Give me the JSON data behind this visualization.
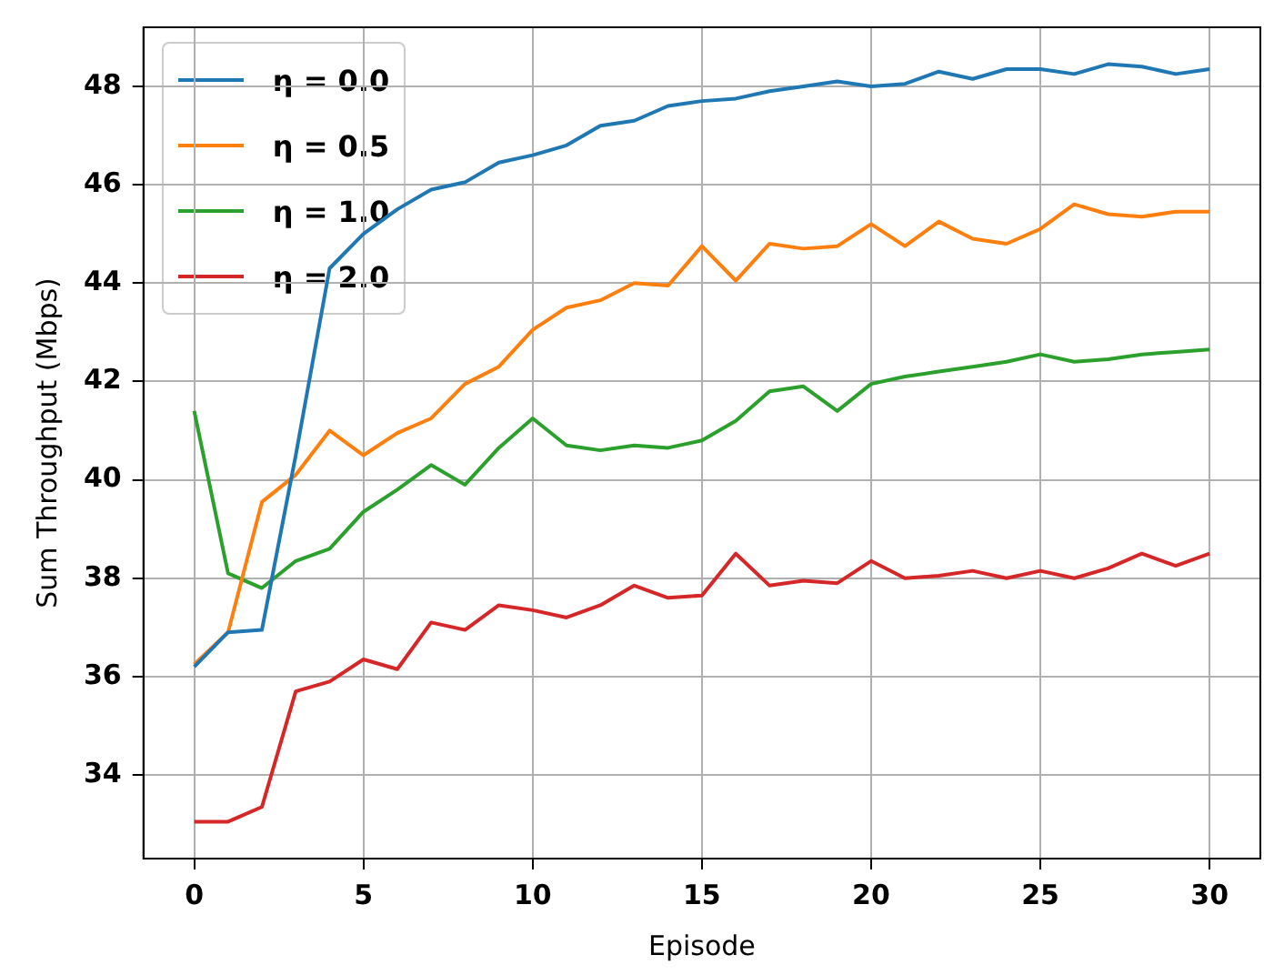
{
  "chart_data": {
    "type": "line",
    "xlabel": "Episode",
    "ylabel": "Sum Throughput (Mbps)",
    "x": [
      0,
      1,
      2,
      3,
      4,
      5,
      6,
      7,
      8,
      9,
      10,
      11,
      12,
      13,
      14,
      15,
      16,
      17,
      18,
      19,
      20,
      21,
      22,
      23,
      24,
      25,
      26,
      27,
      28,
      29,
      30
    ],
    "series": [
      {
        "name": "η = 0.0",
        "color": "#1f77b4",
        "values": [
          36.2,
          36.9,
          36.95,
          40.5,
          44.3,
          45.0,
          45.5,
          45.9,
          46.05,
          46.45,
          46.6,
          46.8,
          47.2,
          47.3,
          47.6,
          47.7,
          47.75,
          47.9,
          48.0,
          48.1,
          48.0,
          48.05,
          48.3,
          48.15,
          48.35,
          48.35,
          48.25,
          48.45,
          48.4,
          48.25,
          48.35
        ]
      },
      {
        "name": "η = 0.5",
        "color": "#ff7f0e",
        "values": [
          36.25,
          36.9,
          39.55,
          40.1,
          41.0,
          40.5,
          40.95,
          41.25,
          41.95,
          42.3,
          43.05,
          43.5,
          43.65,
          44.0,
          43.95,
          44.75,
          44.05,
          44.8,
          44.7,
          44.75,
          45.2,
          44.75,
          45.25,
          44.9,
          44.8,
          45.1,
          45.6,
          45.4,
          45.35,
          45.45,
          45.45
        ]
      },
      {
        "name": "η = 1.0",
        "color": "#2ca02c",
        "values": [
          41.4,
          38.1,
          37.8,
          38.35,
          38.6,
          39.35,
          39.8,
          40.3,
          39.9,
          40.65,
          41.25,
          40.7,
          40.6,
          40.7,
          40.65,
          40.8,
          41.2,
          41.8,
          41.9,
          41.4,
          41.95,
          42.1,
          42.2,
          42.3,
          42.4,
          42.55,
          42.4,
          42.45,
          42.55,
          42.6,
          42.65
        ]
      },
      {
        "name": "η = 2.0",
        "color": "#d62728",
        "values": [
          33.05,
          33.05,
          33.35,
          35.7,
          35.9,
          36.35,
          36.15,
          37.1,
          36.95,
          37.45,
          37.35,
          37.2,
          37.45,
          37.85,
          37.6,
          37.65,
          38.5,
          37.85,
          37.95,
          37.9,
          38.35,
          38.0,
          38.05,
          38.15,
          38.0,
          38.15,
          38.0,
          38.2,
          38.5,
          38.25,
          38.5
        ]
      }
    ],
    "xlim": [
      -1.5,
      31.5
    ],
    "xticks": [
      0,
      5,
      10,
      15,
      20,
      25,
      30
    ],
    "ylim": [
      32.3,
      49.2
    ],
    "yticks": [
      34,
      36,
      38,
      40,
      42,
      44,
      46,
      48
    ],
    "grid": true,
    "legend": "top left",
    "marker": "none",
    "line_style": "solid"
  }
}
